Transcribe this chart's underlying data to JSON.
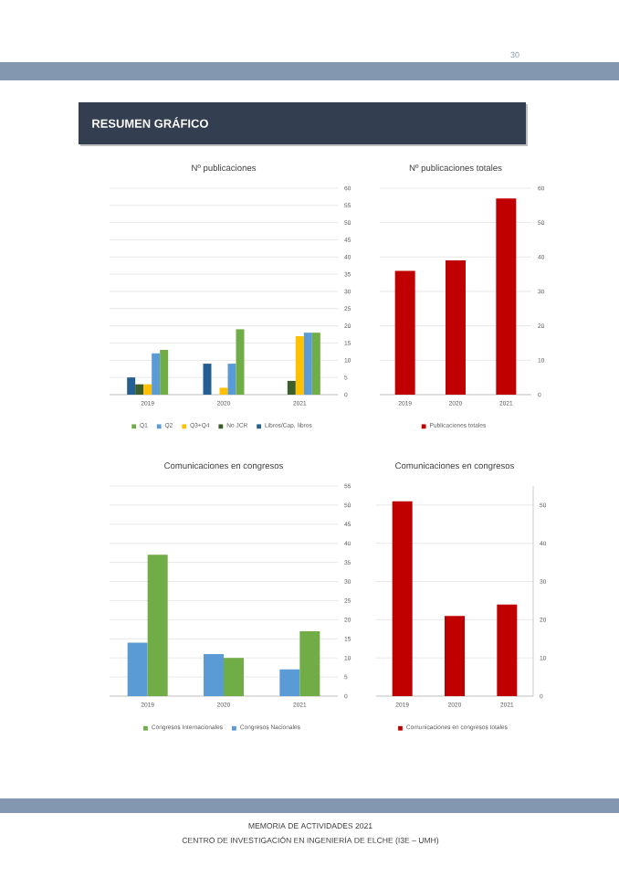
{
  "chart_data": [
    {
      "type": "bar",
      "title": "Nº publicaciones",
      "categories": [
        "2019",
        "2020",
        "2021"
      ],
      "series": [
        {
          "name": "Q1",
          "color": "#70ad47",
          "values": [
            13,
            19,
            18
          ]
        },
        {
          "name": "Q2",
          "color": "#5b9bd5",
          "values": [
            12,
            9,
            18
          ]
        },
        {
          "name": "Q3+Q4",
          "color": "#ffc000",
          "values": [
            3,
            2,
            17
          ]
        },
        {
          "name": "No JCR",
          "color": "#3b5e2b",
          "values": [
            3,
            0,
            4
          ]
        },
        {
          "name": "Libros/Cap. libros",
          "color": "#255e91",
          "values": [
            5,
            9,
            0
          ]
        }
      ],
      "ylim": [
        0,
        60
      ],
      "yticks": [
        0,
        5,
        10,
        15,
        20,
        25,
        30,
        35,
        40,
        45,
        50,
        55,
        60
      ],
      "grid": "y",
      "legend": "bottom",
      "annotations": [
        "30",
        "RESUMEN GRÁFICO"
      ]
    },
    {
      "type": "bar",
      "title": "Nº publicaciones totales",
      "categories": [
        "2019",
        "2020",
        "2021"
      ],
      "series": [
        {
          "name": "Publicaciones totales",
          "color": "#c00000",
          "values": [
            36,
            39,
            57
          ]
        }
      ],
      "ylim": [
        0,
        60
      ],
      "yticks": [
        0,
        10,
        20,
        30,
        40,
        50,
        60
      ],
      "grid": "y",
      "legend": "bottom"
    },
    {
      "type": "bar",
      "title": "Comunicaciones en congresos",
      "categories": [
        "2019",
        "2020",
        "2021"
      ],
      "series": [
        {
          "name": "Congresos Internacionales",
          "color": "#70ad47",
          "values": [
            37,
            10,
            17
          ]
        },
        {
          "name": "Congresos Nacionales",
          "color": "#5b9bd5",
          "values": [
            14,
            11,
            7
          ]
        }
      ],
      "ylim": [
        0,
        55
      ],
      "yticks": [
        0,
        5,
        10,
        15,
        20,
        25,
        30,
        35,
        40,
        45,
        50,
        55
      ],
      "grid": "y",
      "legend": "bottom"
    },
    {
      "type": "bar",
      "title": "Comunicaciones en congresos",
      "categories": [
        "2019",
        "2020",
        "2021"
      ],
      "series": [
        {
          "name": "Comunicaciones en congresos totales",
          "color": "#c00000",
          "values": [
            51,
            21,
            24
          ]
        }
      ],
      "ylim": [
        0,
        55
      ],
      "yticks": [
        0,
        10,
        20,
        30,
        40,
        50
      ],
      "grid": "y",
      "legend": "bottom",
      "annotations": [
        "MEMORIA DE ACTIVIDADES 2021",
        "CENTRO DE INVESTIGACIÓN EN INGENIERÍA DE ELCHE (I3E – UMH)"
      ]
    }
  ]
}
